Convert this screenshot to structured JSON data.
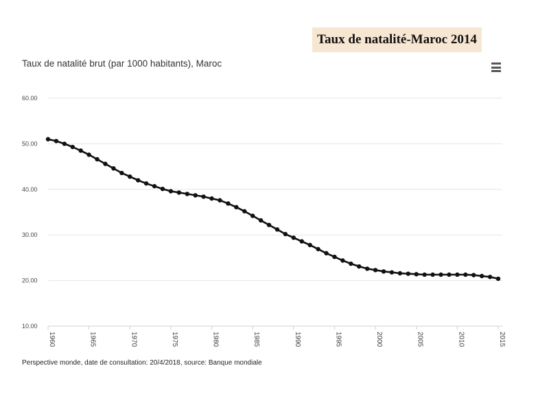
{
  "banner": "Taux de natalité-Maroc 2014",
  "footer": "Perspective monde, date de consultation: 20/4/2018, source: Banque mondiale",
  "menu_icon": "hamburger-menu-icon",
  "colors": {
    "line": "#111111",
    "grid": "#e6e6e6",
    "banner_bg": "#f7e6d2"
  },
  "chart_data": {
    "type": "line",
    "title": "Taux de natalité brut (par 1000 habitants), Maroc",
    "xlabel": "",
    "ylabel": "",
    "xlim": [
      1960,
      2015
    ],
    "ylim": [
      10,
      60
    ],
    "yticks": [
      "10.00",
      "20.00",
      "30.00",
      "40.00",
      "50.00",
      "60.00"
    ],
    "xticks": [
      1960,
      1965,
      1970,
      1975,
      1980,
      1985,
      1990,
      1995,
      2000,
      2005,
      2010,
      2015
    ],
    "grid": true,
    "legend": "none",
    "x": [
      1960,
      1961,
      1962,
      1963,
      1964,
      1965,
      1966,
      1967,
      1968,
      1969,
      1970,
      1971,
      1972,
      1973,
      1974,
      1975,
      1976,
      1977,
      1978,
      1979,
      1980,
      1981,
      1982,
      1983,
      1984,
      1985,
      1986,
      1987,
      1988,
      1989,
      1990,
      1991,
      1992,
      1993,
      1994,
      1995,
      1996,
      1997,
      1998,
      1999,
      2000,
      2001,
      2002,
      2003,
      2004,
      2005,
      2006,
      2007,
      2008,
      2009,
      2010,
      2011,
      2012,
      2013,
      2014,
      2015
    ],
    "series": [
      {
        "values": [
          51.0,
          50.6,
          50.0,
          49.3,
          48.5,
          47.6,
          46.6,
          45.6,
          44.6,
          43.6,
          42.8,
          42.0,
          41.3,
          40.7,
          40.1,
          39.6,
          39.3,
          39.0,
          38.7,
          38.4,
          38.0,
          37.6,
          36.9,
          36.1,
          35.2,
          34.2,
          33.2,
          32.2,
          31.2,
          30.2,
          29.4,
          28.6,
          27.8,
          26.9,
          26.0,
          25.2,
          24.4,
          23.7,
          23.1,
          22.6,
          22.3,
          22.0,
          21.8,
          21.6,
          21.5,
          21.4,
          21.3,
          21.3,
          21.3,
          21.3,
          21.3,
          21.3,
          21.2,
          21.0,
          20.8,
          20.4
        ]
      }
    ]
  }
}
